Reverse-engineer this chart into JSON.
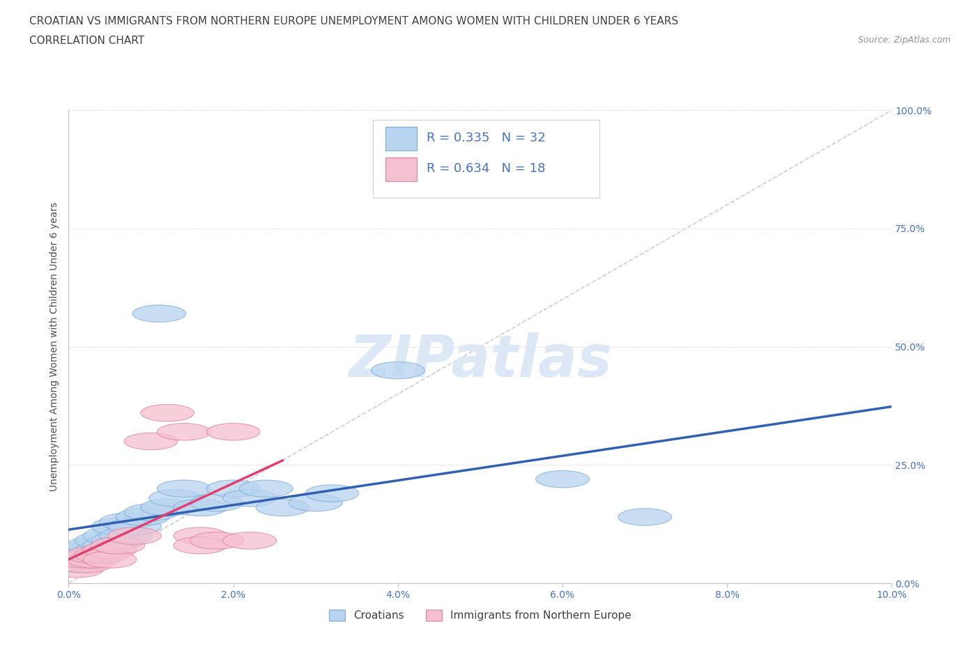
{
  "title_line1": "CROATIAN VS IMMIGRANTS FROM NORTHERN EUROPE UNEMPLOYMENT AMONG WOMEN WITH CHILDREN UNDER 6 YEARS",
  "title_line2": "CORRELATION CHART",
  "source_text": "Source: ZipAtlas.com",
  "ylabel": "Unemployment Among Women with Children Under 6 years",
  "xlim": [
    0.0,
    0.1
  ],
  "ylim": [
    0.0,
    1.0
  ],
  "xticks": [
    0.0,
    0.02,
    0.04,
    0.06,
    0.08,
    0.1
  ],
  "yticks": [
    0.0,
    0.25,
    0.5,
    0.75,
    1.0
  ],
  "xticklabels": [
    "0.0%",
    "2.0%",
    "4.0%",
    "6.0%",
    "8.0%",
    "10.0%"
  ],
  "yticklabels": [
    "0.0%",
    "25.0%",
    "50.0%",
    "75.0%",
    "100.0%"
  ],
  "legend_R1": "R = 0.335",
  "legend_N1": "N = 32",
  "legend_R2": "R = 0.634",
  "legend_N2": "N = 18",
  "label1": "Croatians",
  "label2": "Immigrants from Northern Europe",
  "color1_face": "#b8d4f0",
  "color1_edge": "#7aaad8",
  "color2_face": "#f5c0d0",
  "color2_edge": "#e080a0",
  "line_color1": "#3060b0",
  "line_color2": "#e04070",
  "ref_line_color": "#c8c8c8",
  "legend_text_color": "#4472c4",
  "background_color": "#ffffff",
  "title_color": "#404040",
  "watermark": "ZIPatlas",
  "croatians_x": [
    0.001,
    0.001,
    0.002,
    0.002,
    0.003,
    0.003,
    0.004,
    0.004,
    0.005,
    0.005,
    0.006,
    0.006,
    0.007,
    0.007,
    0.008,
    0.009,
    0.01,
    0.011,
    0.012,
    0.013,
    0.014,
    0.016,
    0.018,
    0.02,
    0.022,
    0.024,
    0.026,
    0.03,
    0.032,
    0.04,
    0.06,
    0.07
  ],
  "croatians_y": [
    0.04,
    0.06,
    0.05,
    0.07,
    0.06,
    0.08,
    0.07,
    0.09,
    0.08,
    0.1,
    0.09,
    0.12,
    0.1,
    0.13,
    0.12,
    0.14,
    0.15,
    0.57,
    0.16,
    0.18,
    0.2,
    0.16,
    0.17,
    0.2,
    0.18,
    0.2,
    0.16,
    0.17,
    0.19,
    0.45,
    0.22,
    0.14
  ],
  "immigrants_x": [
    0.001,
    0.002,
    0.002,
    0.003,
    0.003,
    0.004,
    0.005,
    0.005,
    0.006,
    0.008,
    0.01,
    0.012,
    0.014,
    0.016,
    0.016,
    0.018,
    0.02,
    0.022
  ],
  "immigrants_y": [
    0.03,
    0.04,
    0.05,
    0.05,
    0.06,
    0.06,
    0.07,
    0.05,
    0.08,
    0.1,
    0.3,
    0.36,
    0.32,
    0.1,
    0.08,
    0.09,
    0.32,
    0.09
  ],
  "title_fontsize": 11,
  "subtitle_fontsize": 11,
  "axis_fontsize": 10,
  "tick_fontsize": 10,
  "legend_fontsize": 13,
  "watermark_fontsize": 60
}
